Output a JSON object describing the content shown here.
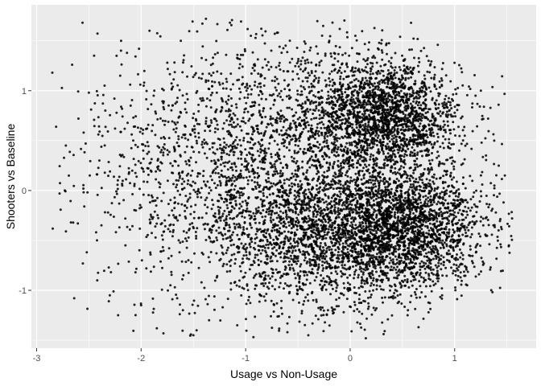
{
  "chart_data": {
    "type": "scatter",
    "title": "",
    "xlabel": "Usage vs Non-Usage",
    "ylabel": "Shooters vs Baseline",
    "xlim": [
      -3.05,
      1.78
    ],
    "ylim": [
      -1.58,
      1.86
    ],
    "x_ticks": [
      -3,
      -2,
      -1,
      0,
      1
    ],
    "x_tick_labels": [
      "-3",
      "-2",
      "-1",
      "0",
      "1"
    ],
    "y_ticks": [
      -1,
      0,
      1
    ],
    "y_tick_labels": [
      "-1",
      "0",
      "1"
    ],
    "grid": true,
    "legend": "none",
    "point_color": "#000000",
    "panel_color": "#ebebeb",
    "gridline_color": "#ffffff",
    "points": [
      [
        -2.85,
        1.18
      ],
      [
        -2.78,
        -0.03
      ],
      [
        -2.73,
        0.0
      ],
      [
        -2.72,
        0.45
      ],
      [
        -2.66,
        1.26
      ],
      [
        -2.64,
        -1.08
      ],
      [
        -2.6,
        0.72
      ],
      [
        -2.55,
        0.58
      ],
      [
        -2.52,
        -0.62
      ],
      [
        -2.5,
        0.98
      ],
      [
        -2.45,
        1.35
      ],
      [
        -2.42,
        -0.9
      ],
      [
        -2.4,
        0.3
      ],
      [
        -2.38,
        -0.35
      ],
      [
        -2.35,
        1.05
      ],
      [
        -2.3,
        -1.05
      ],
      [
        -2.25,
        0.62
      ],
      [
        -2.22,
        -1.25
      ],
      [
        -2.2,
        1.15
      ],
      [
        -2.18,
        0.05
      ],
      [
        -2.15,
        -0.55
      ],
      [
        -2.1,
        0.85
      ],
      [
        -2.05,
        -0.2
      ],
      [
        -2.02,
        1.42
      ],
      [
        -2.0,
        -1.15
      ],
      [
        -1.98,
        0.4
      ],
      [
        -1.95,
        -0.78
      ],
      [
        -1.92,
        1.6
      ],
      [
        -1.9,
        -0.05
      ],
      [
        -1.88,
        0.95
      ],
      [
        -1.85,
        -1.38
      ],
      [
        -1.82,
        0.2
      ],
      [
        -1.8,
        -0.45
      ],
      [
        -1.75,
        1.28
      ],
      [
        -1.72,
        -0.95
      ],
      [
        -1.68,
        0.68
      ],
      [
        -1.65,
        -0.3
      ],
      [
        -1.62,
        1.5
      ],
      [
        -1.6,
        -1.2
      ],
      [
        -1.55,
        0.1
      ],
      [
        -1.5,
        -1.45
      ],
      [
        -1.42,
        0.9
      ],
      [
        -1.38,
        1.72
      ],
      [
        -1.35,
        -1.3
      ],
      [
        -1.3,
        0.3
      ],
      [
        -1.25,
        -0.7
      ],
      [
        -1.15,
        1.68
      ],
      [
        -1.08,
        -1.35
      ],
      [
        -0.95,
        1.55
      ],
      [
        -0.85,
        1.62
      ],
      [
        -0.7,
        1.58
      ],
      [
        -0.6,
        -1.42
      ],
      [
        -0.4,
        -1.45
      ],
      [
        -0.2,
        1.5
      ],
      [
        0.05,
        1.55
      ],
      [
        0.15,
        -1.48
      ],
      [
        0.55,
        -1.25
      ],
      [
        0.88,
        -1.05
      ],
      [
        1.12,
        -0.95
      ],
      [
        1.2,
        0.95
      ],
      [
        1.3,
        0.35
      ],
      [
        1.32,
        0.72
      ],
      [
        1.38,
        0.05
      ],
      [
        1.42,
        -0.4
      ],
      [
        1.48,
        0.15
      ],
      [
        1.52,
        -0.55
      ],
      [
        1.55,
        -0.28
      ]
    ],
    "clusters": [
      {
        "cx": 0.35,
        "cy": 0.75,
        "sx": 0.35,
        "sy": 0.28,
        "n": 1900
      },
      {
        "cx": 0.5,
        "cy": -0.35,
        "sx": 0.4,
        "sy": 0.3,
        "n": 2300
      },
      {
        "cx": -0.3,
        "cy": -0.5,
        "sx": 0.5,
        "sy": 0.38,
        "n": 1500
      },
      {
        "cx": -0.55,
        "cy": 0.45,
        "sx": 0.55,
        "sy": 0.55,
        "n": 1400
      },
      {
        "cx": -1.3,
        "cy": 0.1,
        "sx": 0.55,
        "sy": 0.6,
        "n": 650
      },
      {
        "cx": -2.0,
        "cy": 0.15,
        "sx": 0.45,
        "sy": 0.65,
        "n": 220
      }
    ]
  }
}
